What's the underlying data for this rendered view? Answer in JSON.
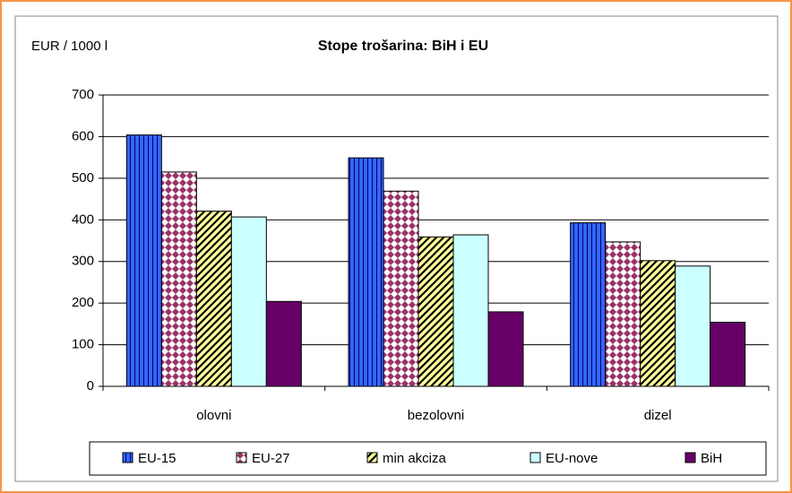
{
  "chart_data": {
    "type": "bar",
    "title": "Stope trošarina: BiH i EU",
    "y_label": "EUR / 1000 l",
    "categories": [
      "olovni",
      "bezolovni",
      "dizel"
    ],
    "series": [
      {
        "name": "EU-15",
        "color": "#3366ff",
        "pattern": "vertical",
        "values": [
          604,
          549,
          393
        ]
      },
      {
        "name": "EU-27",
        "color": "#993366",
        "pattern": "checker",
        "values": [
          515,
          469,
          347
        ]
      },
      {
        "name": "min akciza",
        "color": "#ffff99",
        "pattern": "diagonal",
        "values": [
          421,
          359,
          302
        ]
      },
      {
        "name": "EU-nove",
        "color": "#ccffff",
        "pattern": "solid",
        "values": [
          407,
          364,
          289
        ]
      },
      {
        "name": "BiH",
        "color": "#660066",
        "pattern": "solid",
        "values": [
          204,
          179,
          154
        ]
      }
    ],
    "ylim": [
      0,
      700
    ],
    "yticks": [
      0,
      100,
      200,
      300,
      400,
      500,
      600,
      700
    ],
    "grid": true,
    "legend": "bottom"
  }
}
